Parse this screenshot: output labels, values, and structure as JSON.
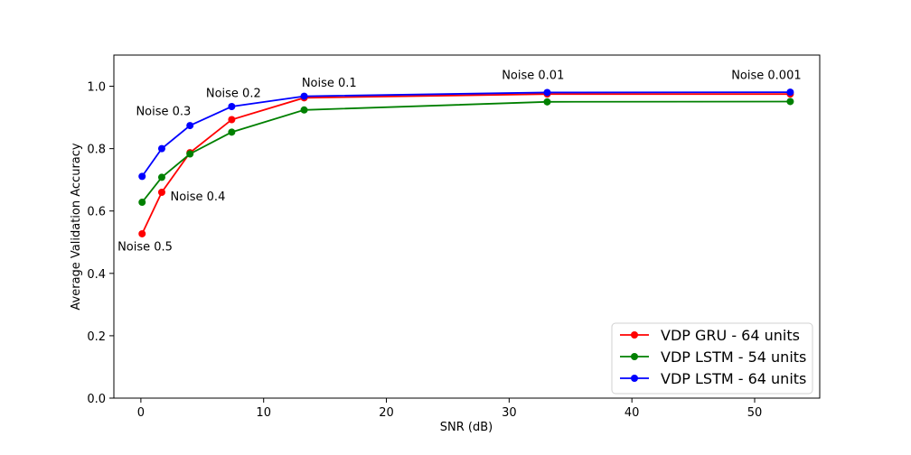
{
  "chart_data": {
    "type": "line",
    "title": "",
    "xlabel": "SNR (dB)",
    "ylabel": "Average Validation Accuracy",
    "xlim": [
      -2.2,
      55.3
    ],
    "ylim": [
      0.0,
      1.1
    ],
    "xticks": [
      0,
      10,
      20,
      30,
      40,
      50
    ],
    "yticks": [
      0.0,
      0.2,
      0.4,
      0.6,
      0.8,
      1.0
    ],
    "xtick_labels": [
      "0",
      "10",
      "20",
      "30",
      "40",
      "50"
    ],
    "ytick_labels": [
      "0.0",
      "0.2",
      "0.4",
      "0.6",
      "0.8",
      "1.0"
    ],
    "grid": false,
    "legend_position": "lower-right",
    "x": [
      0.1,
      1.7,
      4.0,
      7.4,
      13.3,
      33.1,
      52.9
    ],
    "series": [
      {
        "name": "VDP GRU - 64 units",
        "color": "#ff0000",
        "values": [
          0.527,
          0.66,
          0.787,
          0.893,
          0.963,
          0.975,
          0.975
        ]
      },
      {
        "name": "VDP LSTM - 54 units",
        "color": "#008000",
        "values": [
          0.628,
          0.708,
          0.783,
          0.853,
          0.924,
          0.95,
          0.951
        ]
      },
      {
        "name": "VDP LSTM - 64 units",
        "color": "#0000ff",
        "values": [
          0.711,
          0.8,
          0.874,
          0.935,
          0.968,
          0.98,
          0.981
        ]
      }
    ],
    "annotations": [
      {
        "text": "Noise 0.5",
        "x": -1.9,
        "y": 0.473
      },
      {
        "text": "Noise 0.4",
        "x": 2.4,
        "y": 0.634
      },
      {
        "text": "Noise 0.3",
        "x": -0.4,
        "y": 0.907
      },
      {
        "text": "Noise 0.2",
        "x": 5.3,
        "y": 0.965
      },
      {
        "text": "Noise 0.1",
        "x": 13.1,
        "y": 0.998
      },
      {
        "text": "Noise 0.01",
        "x": 29.4,
        "y": 1.023
      },
      {
        "text": "Noise 0.001",
        "x": 48.1,
        "y": 1.024
      }
    ]
  }
}
